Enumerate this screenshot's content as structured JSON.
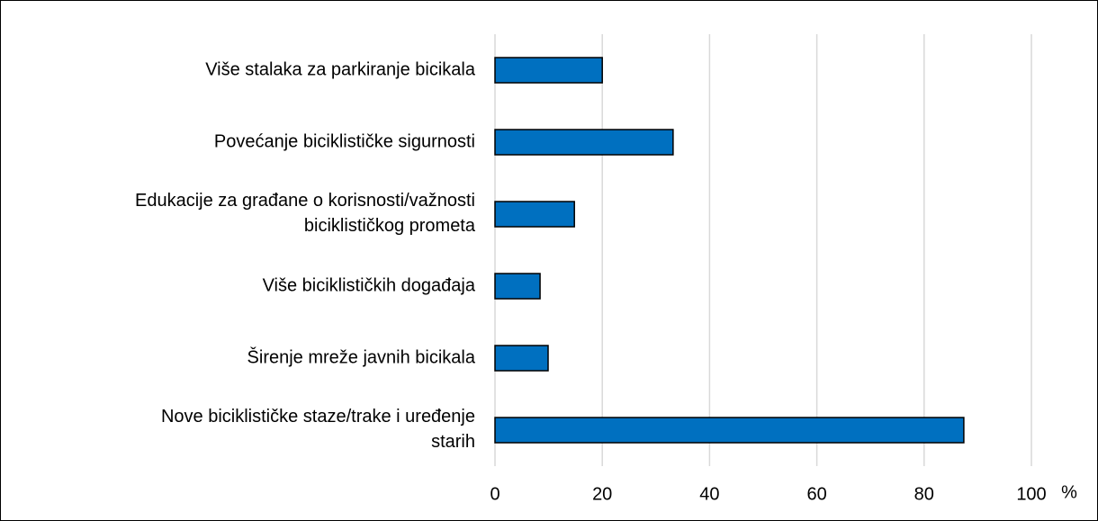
{
  "chart_data": {
    "type": "bar",
    "orientation": "horizontal",
    "categories": [
      "Više stalaka za parkiranje bicikala",
      "Povećanje biciklističke sigurnosti",
      "Edukacije za građane o korisnosti/važnosti\nbiciklističkog prometa",
      "Više biciklističkih događaja",
      "Širenje mreže javnih bicikala",
      "Nove biciklističke staze/trake i uređenje\nstarih"
    ],
    "values": [
      20.0,
      33.2,
      14.8,
      8.4,
      9.9,
      87.4
    ],
    "color": "#0070c0",
    "x_label": "%",
    "xlim": [
      0,
      100
    ],
    "xticks": [
      0,
      20,
      40,
      60,
      80,
      100
    ],
    "grid": true
  }
}
